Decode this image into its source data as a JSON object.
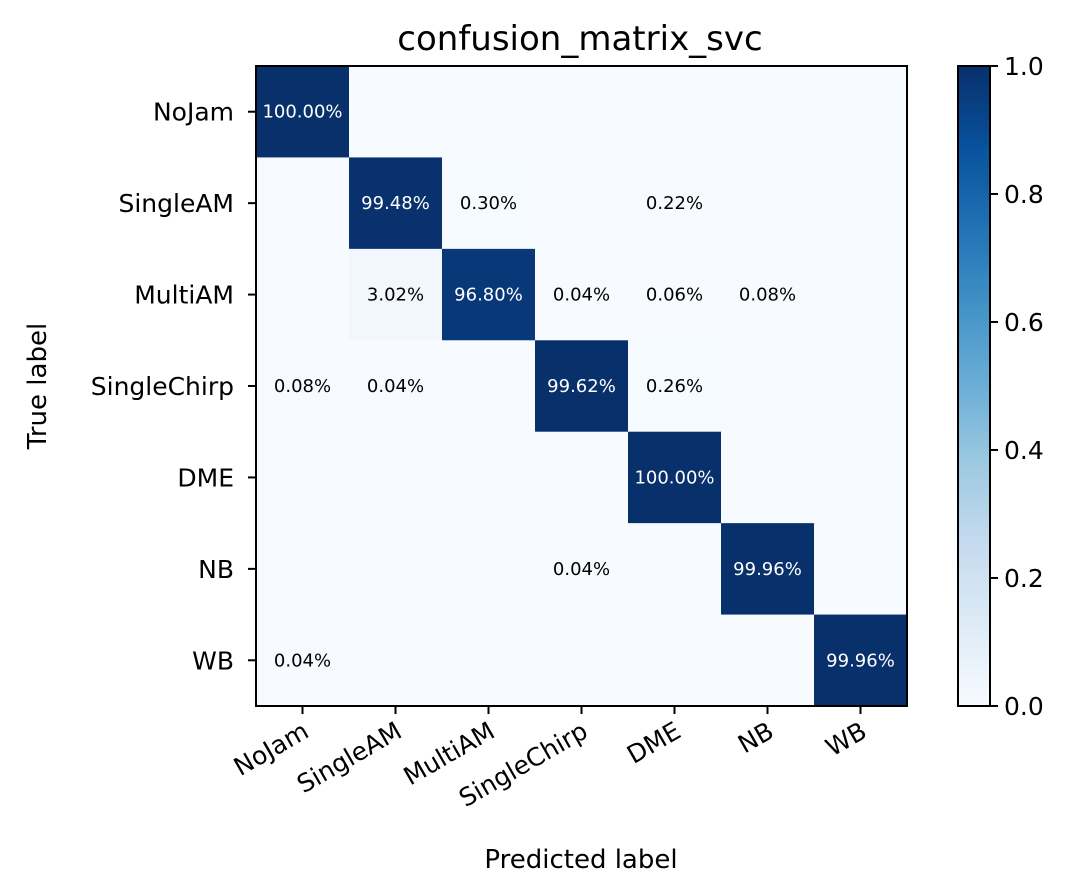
{
  "chart_data": {
    "type": "heatmap",
    "title": "confusion_matrix_svc",
    "xlabel": "Predicted label",
    "ylabel": "True label",
    "row_labels": [
      "NoJam",
      "SingleAM",
      "MultiAM",
      "SingleChirp",
      "DME",
      "NB",
      "WB"
    ],
    "col_labels": [
      "NoJam",
      "SingleAM",
      "MultiAM",
      "SingleChirp",
      "DME",
      "NB",
      "WB"
    ],
    "values": [
      [
        1.0,
        0,
        0,
        0,
        0,
        0,
        0
      ],
      [
        0,
        0.9948,
        0.003,
        0,
        0.0022,
        0,
        0
      ],
      [
        0,
        0.0302,
        0.968,
        0.0004,
        0.0006,
        0.0008,
        0
      ],
      [
        0.0008,
        0.0004,
        0,
        0.9962,
        0.0026,
        0,
        0
      ],
      [
        0,
        0,
        0,
        0,
        1.0,
        0,
        0
      ],
      [
        0,
        0,
        0,
        0.0004,
        0,
        0.9996,
        0
      ],
      [
        0.0004,
        0,
        0,
        0,
        0,
        0,
        0.9996
      ]
    ],
    "cell_labels": [
      [
        "100.00%",
        "",
        "",
        "",
        "",
        "",
        ""
      ],
      [
        "",
        "99.48%",
        "0.30%",
        "",
        "0.22%",
        "",
        ""
      ],
      [
        "",
        "3.02%",
        "96.80%",
        "0.04%",
        "0.06%",
        "0.08%",
        ""
      ],
      [
        "0.08%",
        "0.04%",
        "",
        "99.62%",
        "0.26%",
        "",
        ""
      ],
      [
        "",
        "",
        "",
        "",
        "100.00%",
        "",
        ""
      ],
      [
        "",
        "",
        "",
        "0.04%",
        "",
        "99.96%",
        ""
      ],
      [
        "0.04%",
        "",
        "",
        "",
        "",
        "",
        "99.96%"
      ]
    ],
    "colormap": "Blues",
    "colorbar": {
      "range": [
        0.0,
        1.0
      ],
      "ticks": [
        0.0,
        0.2,
        0.4,
        0.6,
        0.8,
        1.0
      ],
      "tick_labels": [
        "0.0",
        "0.2",
        "0.4",
        "0.6",
        "0.8",
        "1.0"
      ]
    }
  }
}
